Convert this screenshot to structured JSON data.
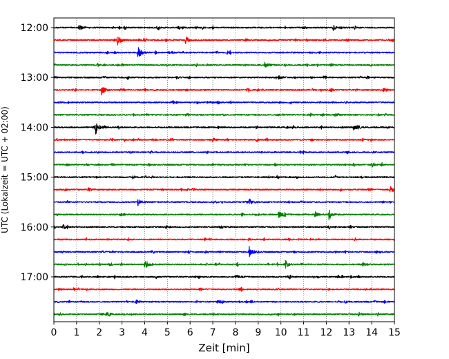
{
  "chart_data": {
    "type": "line",
    "xlabel": "Zeit  [min]",
    "ylabel": "UTC (Lokalzeit = UTC + 02:00)",
    "xlim": [
      0,
      15
    ],
    "x_ticks": [
      "0",
      "1",
      "2",
      "3",
      "4",
      "5",
      "6",
      "7",
      "8",
      "9",
      "10",
      "11",
      "12",
      "13",
      "14",
      "15"
    ],
    "y_ticks": [
      "12:00",
      "13:00",
      "14:00",
      "15:00",
      "16:00",
      "17:00"
    ],
    "grid": "vertical dotted",
    "trace_count": 24,
    "trace_interval_min": 15,
    "colors": [
      "#000000",
      "#ff0000",
      "#0000ff",
      "#008000"
    ],
    "traces": [
      {
        "start": "12:00",
        "color": "#000000",
        "events": [
          [
            1.1,
            0.5
          ],
          [
            12.3,
            0.4
          ]
        ]
      },
      {
        "start": "12:15",
        "color": "#ff0000",
        "events": [
          [
            2.8,
            1.0
          ],
          [
            5.8,
            0.6
          ]
        ]
      },
      {
        "start": "12:30",
        "color": "#0000ff",
        "events": [
          [
            3.7,
            1.0
          ]
        ]
      },
      {
        "start": "12:45",
        "color": "#008000",
        "events": [
          [
            9.3,
            0.55
          ]
        ]
      },
      {
        "start": "13:00",
        "color": "#000000",
        "events": [
          [
            9.9,
            0.3
          ]
        ]
      },
      {
        "start": "13:15",
        "color": "#ff0000",
        "events": [
          [
            2.1,
            0.75
          ],
          [
            14.5,
            0.3
          ]
        ]
      },
      {
        "start": "13:30",
        "color": "#0000ff",
        "events": []
      },
      {
        "start": "13:45",
        "color": "#008000",
        "events": [
          [
            12.4,
            0.3
          ]
        ]
      },
      {
        "start": "14:00",
        "color": "#000000",
        "events": [
          [
            1.85,
            0.95
          ],
          [
            13.2,
            0.5
          ]
        ]
      },
      {
        "start": "14:15",
        "color": "#ff0000",
        "events": [
          [
            7.0,
            0.25
          ]
        ]
      },
      {
        "start": "14:30",
        "color": "#0000ff",
        "events": []
      },
      {
        "start": "14:45",
        "color": "#008000",
        "events": [
          [
            14.0,
            0.25
          ]
        ]
      },
      {
        "start": "15:00",
        "color": "#000000",
        "events": []
      },
      {
        "start": "15:15",
        "color": "#ff0000",
        "events": [
          [
            14.8,
            0.6
          ],
          [
            1.5,
            0.3
          ]
        ]
      },
      {
        "start": "15:30",
        "color": "#0000ff",
        "events": [
          [
            3.7,
            0.55
          ],
          [
            8.6,
            0.6
          ]
        ]
      },
      {
        "start": "15:45",
        "color": "#008000",
        "events": [
          [
            12.1,
            0.9
          ],
          [
            9.9,
            0.5
          ],
          [
            11.5,
            0.4
          ]
        ]
      },
      {
        "start": "16:00",
        "color": "#000000",
        "events": [
          [
            0.4,
            0.35
          ],
          [
            7.3,
            0.3
          ]
        ]
      },
      {
        "start": "16:15",
        "color": "#ff0000",
        "events": []
      },
      {
        "start": "16:30",
        "color": "#0000ff",
        "events": [
          [
            8.6,
            0.9
          ]
        ]
      },
      {
        "start": "16:45",
        "color": "#008000",
        "events": [
          [
            4.0,
            0.95
          ],
          [
            10.2,
            0.45
          ],
          [
            13.6,
            0.3
          ]
        ]
      },
      {
        "start": "17:00",
        "color": "#000000",
        "events": [
          [
            8.0,
            0.3
          ]
        ]
      },
      {
        "start": "17:15",
        "color": "#ff0000",
        "events": []
      },
      {
        "start": "17:30",
        "color": "#0000ff",
        "events": [
          [
            3.6,
            0.3
          ],
          [
            7.2,
            0.25
          ]
        ]
      },
      {
        "start": "17:45",
        "color": "#008000",
        "events": [
          [
            13.4,
            0.35
          ],
          [
            2.3,
            0.25
          ]
        ]
      }
    ]
  }
}
